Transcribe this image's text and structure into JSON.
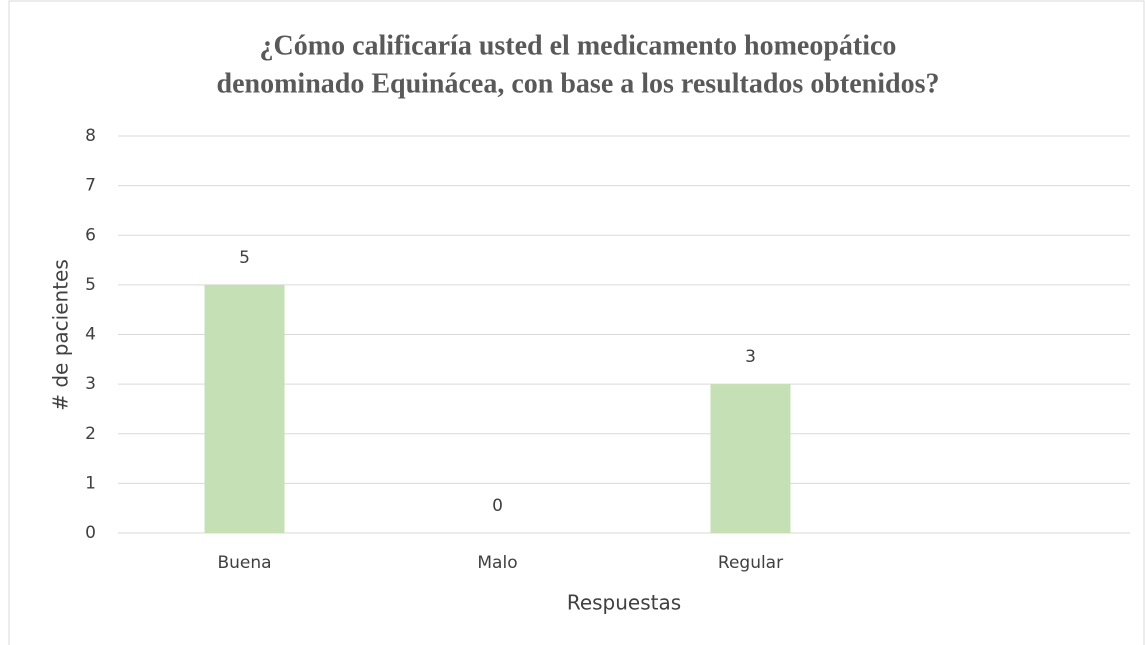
{
  "chart_data": {
    "type": "bar",
    "title": [
      "¿Cómo calificaría usted el medicamento homeopático",
      "denominado Equinácea, con base a los resultados obtenidos?"
    ],
    "x_label": "Respuestas",
    "y_label": "# de pacientes",
    "categories": [
      "Buena",
      "Malo",
      "Regular",
      null
    ],
    "values": [
      5,
      0,
      3,
      null
    ],
    "color": "#c5e0b4",
    "ylim": [
      0,
      8
    ],
    "yticks": [
      0,
      1,
      2,
      3,
      4,
      5,
      6,
      7,
      8
    ],
    "grid": true,
    "data_labels": true
  }
}
